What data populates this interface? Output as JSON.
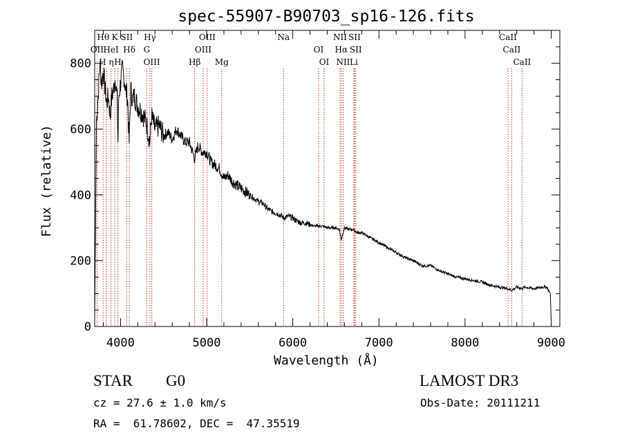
{
  "chart_data": {
    "type": "line",
    "title": "spec-55907-B90703_sp16-126.fits",
    "xlabel": "Wavelength (Å)",
    "ylabel": "Flux (relative)",
    "xlim": [
      3700,
      9100
    ],
    "ylim": [
      0,
      900
    ],
    "x_ticks": [
      4000,
      5000,
      6000,
      7000,
      8000,
      9000
    ],
    "y_ticks": [
      0,
      200,
      400,
      600,
      800
    ],
    "grid": false,
    "series": [
      {
        "name": "flux",
        "x": [
          3700,
          3720,
          3740,
          3760,
          3780,
          3800,
          3820,
          3840,
          3860,
          3880,
          3900,
          3920,
          3940,
          3960,
          3970,
          3980,
          4000,
          4020,
          4040,
          4060,
          4080,
          4100,
          4120,
          4140,
          4160,
          4200,
          4250,
          4300,
          4340,
          4360,
          4400,
          4450,
          4500,
          4550,
          4600,
          4650,
          4700,
          4750,
          4800,
          4861,
          4900,
          4950,
          5000,
          5050,
          5100,
          5150,
          5200,
          5250,
          5300,
          5350,
          5400,
          5450,
          5500,
          5550,
          5600,
          5650,
          5700,
          5750,
          5800,
          5850,
          5893,
          5950,
          6000,
          6050,
          6100,
          6150,
          6200,
          6250,
          6300,
          6350,
          6400,
          6450,
          6500,
          6540,
          6563,
          6600,
          6650,
          6700,
          6750,
          6800,
          6900,
          7000,
          7100,
          7200,
          7300,
          7400,
          7500,
          7600,
          7700,
          7800,
          7900,
          8000,
          8100,
          8200,
          8300,
          8400,
          8498,
          8542,
          8600,
          8662,
          8700,
          8800,
          8900,
          8950,
          8990,
          9000
        ],
        "y": [
          20,
          620,
          700,
          800,
          740,
          780,
          720,
          680,
          700,
          640,
          700,
          720,
          760,
          690,
          560,
          700,
          740,
          780,
          760,
          720,
          700,
          560,
          720,
          690,
          700,
          670,
          650,
          620,
          560,
          640,
          600,
          610,
          580,
          590,
          570,
          600,
          580,
          560,
          560,
          510,
          550,
          530,
          530,
          500,
          490,
          480,
          450,
          460,
          440,
          430,
          420,
          410,
          400,
          390,
          380,
          375,
          360,
          350,
          345,
          340,
          330,
          335,
          330,
          320,
          315,
          315,
          310,
          305,
          305,
          305,
          300,
          300,
          300,
          295,
          265,
          300,
          295,
          295,
          285,
          285,
          270,
          255,
          240,
          225,
          210,
          200,
          185,
          185,
          170,
          160,
          150,
          145,
          140,
          135,
          125,
          120,
          115,
          110,
          120,
          115,
          120,
          115,
          120,
          120,
          100,
          20
        ]
      }
    ],
    "lines": [
      {
        "label": "Hθ",
        "x": 3798
      },
      {
        "label": "OII",
        "x": 3727
      },
      {
        "label": "H η",
        "x": 3835
      },
      {
        "label": "K",
        "x": 3934
      },
      {
        "label": "HeI",
        "x": 3889
      },
      {
        "label": "H",
        "x": 3969
      },
      {
        "label": "SII",
        "x": 4072
      },
      {
        "label": "Hδ",
        "x": 4102
      },
      {
        "label": "OIII",
        "x": 4363
      },
      {
        "label": "Hγ",
        "x": 4341
      },
      {
        "label": "G",
        "x": 4305
      },
      {
        "label": "Hβ",
        "x": 4861
      },
      {
        "label": "OIII",
        "x": 5007
      },
      {
        "label": "OIII",
        "x": 4959
      },
      {
        "label": "Mg",
        "x": 5175
      },
      {
        "label": "Na",
        "x": 5893
      },
      {
        "label": "OI",
        "x": 6300
      },
      {
        "label": "OI",
        "x": 6364
      },
      {
        "label": "NII",
        "x": 6548
      },
      {
        "label": "Hα",
        "x": 6563
      },
      {
        "label": "NII",
        "x": 6584
      },
      {
        "label": "SII",
        "x": 6717
      },
      {
        "label": "SII",
        "x": 6731
      },
      {
        "label": "Li",
        "x": 6708
      },
      {
        "label": "CaII",
        "x": 8498
      },
      {
        "label": "CaII",
        "x": 8542
      },
      {
        "label": "CaII",
        "x": 8662
      }
    ]
  },
  "info": {
    "object_class": "STAR",
    "subclass": "G0",
    "survey": "LAMOST DR3",
    "cz": "cz = 27.6 ± 1.0 km/s",
    "obs_date": "Obs-Date: 20111211",
    "coords": "RA =  61.78602, DEC =  47.35519"
  },
  "colors": {
    "axis": "#000000",
    "spectrum": "#000000",
    "line_markers": "#c03020"
  }
}
